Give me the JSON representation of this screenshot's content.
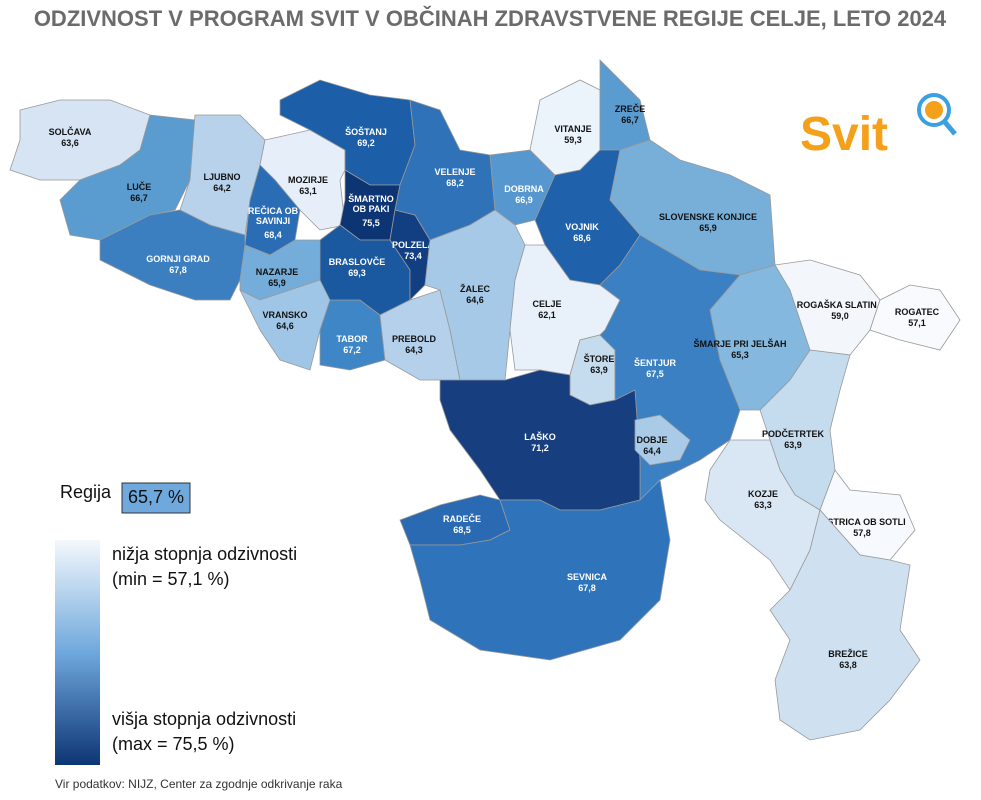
{
  "header": {
    "title": "ODZIVNOST V PROGRAM SVIT V OBČINAH ZDRAVSTVENE REGIJE CELJE, LETO 2024"
  },
  "logo": {
    "text": "Svit"
  },
  "regions": [
    {
      "name": "SOLČAVA",
      "label": "63,6",
      "color": "#d6e4f3"
    },
    {
      "name": "LUČE",
      "label": "66,7",
      "color": "#5a9bd0"
    },
    {
      "name": "LJUBNO",
      "label": "64,2",
      "color": "#b7d2ea"
    },
    {
      "name": "MOZIRJE",
      "label": "63,1",
      "color": "#e6eff9"
    },
    {
      "name": "ŠOŠTANJ",
      "label": "69,2",
      "color": "#1c5ea8"
    },
    {
      "name": [
        "REČICA OB",
        "SAVINJI"
      ],
      "label": "68,4",
      "color": "#2a6db5"
    },
    {
      "name": "GORNJI GRAD",
      "label": "67,8",
      "color": "#3b7fc1"
    },
    {
      "name": "NAZARJE",
      "label": "65,9",
      "color": "#74add9"
    },
    {
      "name": "VRANSKO",
      "label": "64,6",
      "color": "#9fc6e6"
    },
    {
      "name": "TABOR",
      "label": "67,2",
      "color": "#3f86c6"
    },
    {
      "name": [
        "ŠMARTNO",
        "OB PAKI"
      ],
      "label": "75,5",
      "color": "#0d3574"
    },
    {
      "name": "BRASLOVČE",
      "label": "69,3",
      "color": "#1a589f"
    },
    {
      "name": "POLZELA",
      "label": "73,4",
      "color": "#123f82"
    },
    {
      "name": "PREBOLD",
      "label": "64,3",
      "color": "#b4d0ea"
    },
    {
      "name": "VELENJE",
      "label": "68,2",
      "color": "#2f72b8"
    },
    {
      "name": "DOBRNA",
      "label": "66,9",
      "color": "#5797cf"
    },
    {
      "name": "ŽALEC",
      "label": "64,6",
      "color": "#a6c9e8"
    },
    {
      "name": "VITANJE",
      "label": "59,3",
      "color": "#ebf3fb"
    },
    {
      "name": "ZREČE",
      "label": "66,7",
      "color": "#5a9bd0"
    },
    {
      "name": "VOJNIK",
      "label": "68,6",
      "color": "#1f62ab"
    },
    {
      "name": "SLOVENSKE KONJICE",
      "label": "65,9",
      "color": "#77afd9"
    },
    {
      "name": "CELJE",
      "label": "62,1",
      "color": "#e8f0f9"
    },
    {
      "name": "ŠTORE",
      "label": "63,9",
      "color": "#c5dbee"
    },
    {
      "name": "ŠENTJUR",
      "label": "67,5",
      "color": "#3a80c2"
    },
    {
      "name": "ŠMARJE PRI JELŠAH",
      "label": "65,3",
      "color": "#85b8de"
    },
    {
      "name": "ROGAŠKA SLATINA",
      "label": "59,0",
      "color": "#f3f7fc"
    },
    {
      "name": "ROGATEC",
      "label": "57,1",
      "color": "#f8fafd"
    },
    {
      "name": "PODČETRTEK",
      "label": "63,9",
      "color": "#c5dbee"
    },
    {
      "name": "KOZJE",
      "label": "63,3",
      "color": "#d9e7f4"
    },
    {
      "name": "BISTRICA OB SOTLI",
      "label": "57,8",
      "color": "#f6f9fd"
    },
    {
      "name": "BREŽICE",
      "label": "63,8",
      "color": "#cfe1f1"
    },
    {
      "name": "LAŠKO",
      "label": "71,2",
      "color": "#173f80"
    },
    {
      "name": "DOBJE",
      "label": "64,4",
      "color": "#a9cbe8"
    },
    {
      "name": "RADEČE",
      "label": "68,5",
      "color": "#2a6ab3"
    },
    {
      "name": "SEVNICA",
      "label": "67,8",
      "color": "#2f74ba"
    }
  ],
  "region_total": {
    "label": "Regija",
    "value": "65,7 %",
    "color": "#6fa8dc"
  },
  "legend": {
    "low": "nižja stopnja odzivnosti",
    "low_note": "(min = 57,1 %)",
    "high": "višja stopnja odzivnosti",
    "high_note": "(max = 75,5 %)"
  },
  "source": "Vir podatkov: NIJZ, Center za zgodnje odkrivanje raka"
}
